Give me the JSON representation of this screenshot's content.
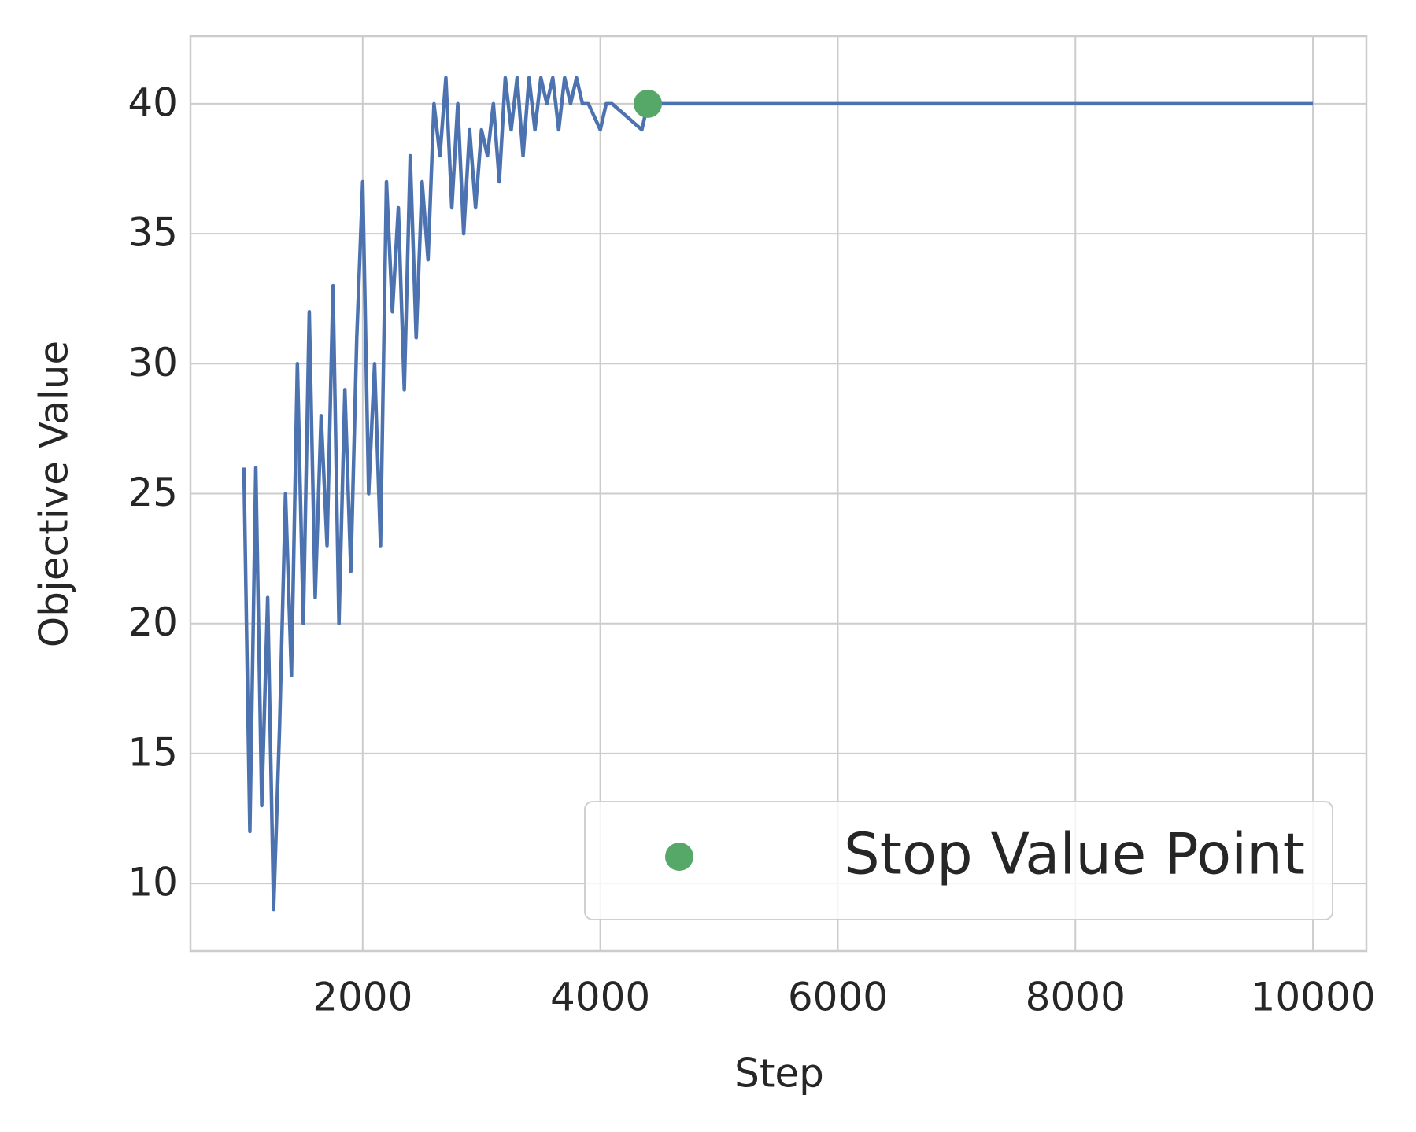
{
  "chart_data": {
    "type": "line",
    "x_label": "Step",
    "y_label": "Objective Value",
    "xlim": [
      550,
      10450
    ],
    "ylim": [
      7.4,
      42.6
    ],
    "xticks": [
      2000,
      4000,
      6000,
      8000,
      10000
    ],
    "yticks": [
      10,
      15,
      20,
      25,
      30,
      35,
      40
    ],
    "grid": true,
    "legend": "lower right",
    "series": [
      {
        "color": "#4c72b0",
        "x": [
          1000,
          1050,
          1100,
          1150,
          1200,
          1250,
          1300,
          1350,
          1400,
          1450,
          1500,
          1550,
          1600,
          1650,
          1700,
          1750,
          1800,
          1850,
          1900,
          1950,
          2000,
          2050,
          2100,
          2150,
          2200,
          2250,
          2300,
          2350,
          2400,
          2450,
          2500,
          2550,
          2600,
          2650,
          2700,
          2750,
          2800,
          2850,
          2900,
          2950,
          3000,
          3050,
          3100,
          3150,
          3200,
          3250,
          3300,
          3350,
          3400,
          3450,
          3500,
          3550,
          3600,
          3650,
          3700,
          3750,
          3800,
          3850,
          3900,
          4000,
          4050,
          4100,
          4350,
          4400,
          4450,
          10000
        ],
        "values": [
          26,
          12,
          26,
          13,
          21,
          9,
          16,
          25,
          18,
          30,
          20,
          32,
          21,
          28,
          23,
          33,
          20,
          29,
          22,
          31,
          37,
          25,
          30,
          23,
          37,
          32,
          36,
          29,
          38,
          31,
          37,
          34,
          40,
          38,
          41,
          36,
          40,
          35,
          39,
          36,
          39,
          38,
          40,
          37,
          41,
          39,
          41,
          38,
          41,
          39,
          41,
          40,
          41,
          39,
          41,
          40,
          41,
          40,
          40,
          39,
          40,
          40,
          39,
          40,
          40,
          40
        ]
      },
      {
        "name": "Stop Value Point",
        "color": "#55a868",
        "marker": "circle",
        "x": [
          4400
        ],
        "values": [
          40
        ]
      }
    ]
  }
}
